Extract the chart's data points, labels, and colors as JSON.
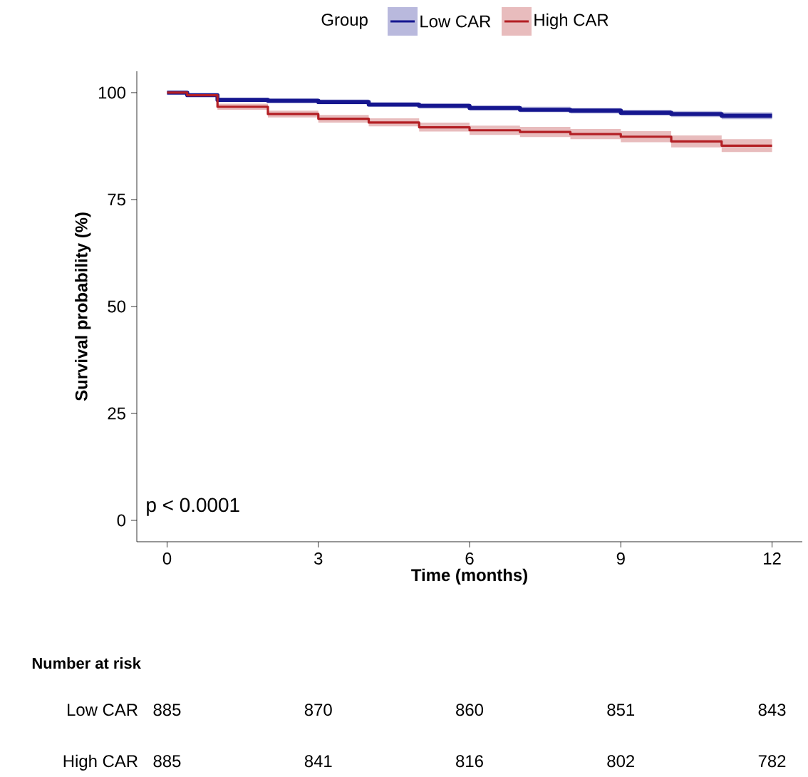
{
  "chart_data": {
    "type": "step",
    "ylabel": "Survival probability (%)",
    "xlabel": "Time (months)",
    "legend_title": "Group",
    "legend": "top",
    "xlim": [
      -0.6,
      12.6
    ],
    "xticks": [
      0,
      3,
      6,
      9,
      12
    ],
    "ylim": [
      -5,
      105
    ],
    "yticks": [
      0,
      25,
      50,
      75,
      100
    ],
    "series": [
      {
        "name": "Low CAR",
        "color": "#15168f",
        "x": [
          0,
          0.4,
          1,
          2,
          3,
          4,
          5,
          6,
          7,
          8,
          9,
          10,
          11,
          12
        ],
        "values": [
          100,
          99.4,
          98.3,
          98.1,
          97.8,
          97.2,
          96.9,
          96.4,
          96.0,
          95.8,
          95.3,
          95.0,
          94.6,
          94.6
        ],
        "lower": [
          100,
          99.0,
          97.8,
          97.6,
          97.3,
          96.7,
          96.3,
          95.8,
          95.4,
          95.1,
          94.6,
          94.3,
          93.8,
          93.8
        ],
        "upper": [
          100,
          99.8,
          98.8,
          98.6,
          98.4,
          97.8,
          97.5,
          97.0,
          96.7,
          96.4,
          96.0,
          95.7,
          95.4,
          95.4
        ]
      },
      {
        "name": "High CAR",
        "color": "#b31f24",
        "x": [
          0,
          0.4,
          1,
          2,
          3,
          4,
          5,
          6,
          7,
          8,
          9,
          10,
          11,
          12
        ],
        "values": [
          100,
          99.4,
          96.7,
          95.0,
          93.9,
          93.0,
          91.9,
          91.2,
          90.8,
          90.3,
          89.7,
          88.6,
          87.6,
          87.6
        ],
        "lower": [
          100,
          99.0,
          96.0,
          94.2,
          93.0,
          92.1,
          90.9,
          90.1,
          89.6,
          89.1,
          88.4,
          87.2,
          86.1,
          86.1
        ],
        "upper": [
          100,
          99.8,
          97.4,
          95.8,
          94.8,
          94.0,
          93.0,
          92.3,
          92.0,
          91.5,
          91.0,
          90.0,
          89.1,
          89.1
        ]
      }
    ],
    "annotations": [
      "p < 0.0001",
      "Number at risk",
      "885",
      "870",
      "860",
      "851",
      "843",
      "885",
      "841",
      "816",
      "802",
      "782"
    ]
  }
}
